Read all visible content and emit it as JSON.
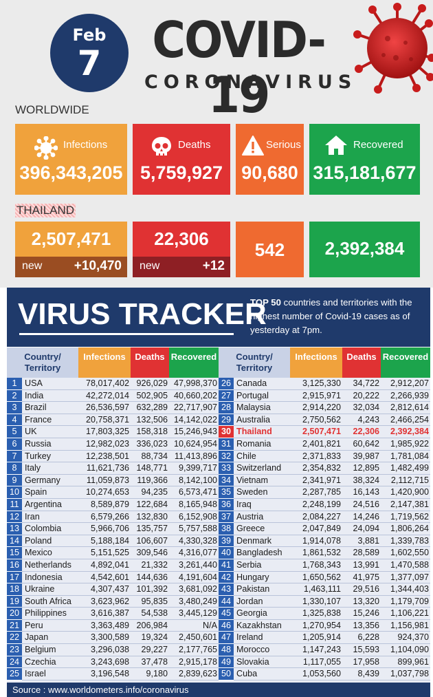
{
  "header": {
    "month": "Feb",
    "day": "7",
    "title": "COVID-19",
    "subtitle": "CORONAVIRUS"
  },
  "worldwide": {
    "label": "WORLDWIDE",
    "infections_label": "Infections",
    "infections": "396,343,205",
    "deaths_label": "Deaths",
    "deaths": "5,759,927",
    "serious_label": "Serious",
    "serious": "90,680",
    "recovered_label": "Recovered",
    "recovered": "315,181,677"
  },
  "thailand": {
    "label": "THAILAND",
    "infections": "2,507,471",
    "infections_new_label": "new",
    "infections_new": "+10,470",
    "deaths": "22,306",
    "deaths_new_label": "new",
    "deaths_new": "+12",
    "serious": "542",
    "recovered": "2,392,384"
  },
  "tracker": {
    "title": "VIRUS TRACKER",
    "desc_bold": "TOP 50",
    "desc_rest": " countries and territories with the highest number of Covid-19 cases as of yesterday at 7pm."
  },
  "table": {
    "columns": {
      "country": "Country/ Territory",
      "infections": "Infections",
      "deaths": "Deaths",
      "recovered": "Recovered"
    },
    "left": [
      {
        "rank": "1",
        "name": "USA",
        "inf": "78,017,402",
        "dth": "926,029",
        "rec": "47,998,370"
      },
      {
        "rank": "2",
        "name": "India",
        "inf": "42,272,014",
        "dth": "502,905",
        "rec": "40,660,202"
      },
      {
        "rank": "3",
        "name": "Brazil",
        "inf": "26,536,597",
        "dth": "632,289",
        "rec": "22,717,907"
      },
      {
        "rank": "4",
        "name": "France",
        "inf": "20,758,371",
        "dth": "132,506",
        "rec": "14,142,022"
      },
      {
        "rank": "5",
        "name": "UK",
        "inf": "17,803,325",
        "dth": "158,318",
        "rec": "15,246,943"
      },
      {
        "rank": "6",
        "name": "Russia",
        "inf": "12,982,023",
        "dth": "336,023",
        "rec": "10,624,954"
      },
      {
        "rank": "7",
        "name": "Turkey",
        "inf": "12,238,501",
        "dth": "88,734",
        "rec": "11,413,896"
      },
      {
        "rank": "8",
        "name": "Italy",
        "inf": "11,621,736",
        "dth": "148,771",
        "rec": "9,399,717"
      },
      {
        "rank": "9",
        "name": "Germany",
        "inf": "11,059,873",
        "dth": "119,366",
        "rec": "8,142,100"
      },
      {
        "rank": "10",
        "name": "Spain",
        "inf": "10,274,653",
        "dth": "94,235",
        "rec": "6,573,471"
      },
      {
        "rank": "11",
        "name": "Argentina",
        "inf": "8,589,879",
        "dth": "122,684",
        "rec": "8,165,948"
      },
      {
        "rank": "12",
        "name": "Iran",
        "inf": "6,579,266",
        "dth": "132,830",
        "rec": "6,152,908"
      },
      {
        "rank": "13",
        "name": "Colombia",
        "inf": "5,966,706",
        "dth": "135,757",
        "rec": "5,757,588"
      },
      {
        "rank": "14",
        "name": "Poland",
        "inf": "5,188,184",
        "dth": "106,607",
        "rec": "4,330,328"
      },
      {
        "rank": "15",
        "name": "Mexico",
        "inf": "5,151,525",
        "dth": "309,546",
        "rec": "4,316,077"
      },
      {
        "rank": "16",
        "name": "Netherlands",
        "inf": "4,892,041",
        "dth": "21,332",
        "rec": "3,261,440"
      },
      {
        "rank": "17",
        "name": "Indonesia",
        "inf": "4,542,601",
        "dth": "144,636",
        "rec": "4,191,604"
      },
      {
        "rank": "18",
        "name": "Ukraine",
        "inf": "4,307,437",
        "dth": "101,392",
        "rec": "3,681,092"
      },
      {
        "rank": "19",
        "name": "South Africa",
        "inf": "3,623,962",
        "dth": "95,835",
        "rec": "3,480,249"
      },
      {
        "rank": "20",
        "name": "Philippines",
        "inf": "3,616,387",
        "dth": "54,538",
        "rec": "3,445,129"
      },
      {
        "rank": "21",
        "name": "Peru",
        "inf": "3,363,489",
        "dth": "206,984",
        "rec": "N/A"
      },
      {
        "rank": "22",
        "name": "Japan",
        "inf": "3,300,589",
        "dth": "19,324",
        "rec": "2,450,601"
      },
      {
        "rank": "23",
        "name": "Belgium",
        "inf": "3,296,038",
        "dth": "29,227",
        "rec": "2,177,765"
      },
      {
        "rank": "24",
        "name": "Czechia",
        "inf": "3,243,698",
        "dth": "37,478",
        "rec": "2,915,178"
      },
      {
        "rank": "25",
        "name": "Israel",
        "inf": "3,196,548",
        "dth": "9,180",
        "rec": "2,839,623"
      }
    ],
    "right": [
      {
        "rank": "26",
        "name": "Canada",
        "inf": "3,125,330",
        "dth": "34,722",
        "rec": "2,912,207"
      },
      {
        "rank": "27",
        "name": "Portugal",
        "inf": "2,915,971",
        "dth": "20,222",
        "rec": "2,266,939"
      },
      {
        "rank": "28",
        "name": "Malaysia",
        "inf": "2,914,220",
        "dth": "32,034",
        "rec": "2,812,614"
      },
      {
        "rank": "29",
        "name": "Australia",
        "inf": "2,750,562",
        "dth": "4,243",
        "rec": "2,466,254"
      },
      {
        "rank": "30",
        "name": "Thailand",
        "inf": "2,507,471",
        "dth": "22,306",
        "rec": "2,392,384",
        "highlight": true
      },
      {
        "rank": "31",
        "name": "Romania",
        "inf": "2,401,821",
        "dth": "60,642",
        "rec": "1,985,922"
      },
      {
        "rank": "32",
        "name": "Chile",
        "inf": "2,371,833",
        "dth": "39,987",
        "rec": "1,781,084"
      },
      {
        "rank": "33",
        "name": "Switzerland",
        "inf": "2,354,832",
        "dth": "12,895",
        "rec": "1,482,499"
      },
      {
        "rank": "34",
        "name": "Vietnam",
        "inf": "2,341,971",
        "dth": "38,324",
        "rec": "2,112,715"
      },
      {
        "rank": "35",
        "name": "Sweden",
        "inf": "2,287,785",
        "dth": "16,143",
        "rec": "1,420,900"
      },
      {
        "rank": "36",
        "name": "Iraq",
        "inf": "2,248,199",
        "dth": "24,516",
        "rec": "2,147,381"
      },
      {
        "rank": "37",
        "name": "Austria",
        "inf": "2,084,227",
        "dth": "14,246",
        "rec": "1,719,562"
      },
      {
        "rank": "38",
        "name": "Greece",
        "inf": "2,047,849",
        "dth": "24,094",
        "rec": "1,806,264"
      },
      {
        "rank": "39",
        "name": "Denmark",
        "inf": "1,914,078",
        "dth": "3,881",
        "rec": "1,339,783"
      },
      {
        "rank": "40",
        "name": "Bangladesh",
        "inf": "1,861,532",
        "dth": "28,589",
        "rec": "1,602,550"
      },
      {
        "rank": "41",
        "name": "Serbia",
        "inf": "1,768,343",
        "dth": "13,991",
        "rec": "1,470,588"
      },
      {
        "rank": "42",
        "name": "Hungary",
        "inf": "1,650,562",
        "dth": "41,975",
        "rec": "1,377,097"
      },
      {
        "rank": "43",
        "name": "Pakistan",
        "inf": "1,463,111",
        "dth": "29,516",
        "rec": "1,344,403"
      },
      {
        "rank": "44",
        "name": "Jordan",
        "inf": "1,330,107",
        "dth": "13,320",
        "rec": "1,179,709"
      },
      {
        "rank": "45",
        "name": "Georgia",
        "inf": "1,325,838",
        "dth": "15,246",
        "rec": "1,106,221"
      },
      {
        "rank": "46",
        "name": "Kazakhstan",
        "inf": "1,270,954",
        "dth": "13,356",
        "rec": "1,156,981"
      },
      {
        "rank": "47",
        "name": "Ireland",
        "inf": "1,205,914",
        "dth": "6,228",
        "rec": "924,370"
      },
      {
        "rank": "48",
        "name": "Morocco",
        "inf": "1,147,243",
        "dth": "15,593",
        "rec": "1,104,090"
      },
      {
        "rank": "49",
        "name": "Slovakia",
        "inf": "1,117,055",
        "dth": "17,958",
        "rec": "899,961"
      },
      {
        "rank": "50",
        "name": "Cuba",
        "inf": "1,053,560",
        "dth": "8,439",
        "rec": "1,037,798"
      }
    ]
  },
  "source": "Source : www.worldometers.info/coronavirus",
  "colors": {
    "navy": "#1f3a6b",
    "orange": "#f0a23c",
    "red": "#e03233",
    "dark_orange": "#ef6a30",
    "green": "#1ca44c",
    "rank_blue": "#2b5fb0"
  }
}
